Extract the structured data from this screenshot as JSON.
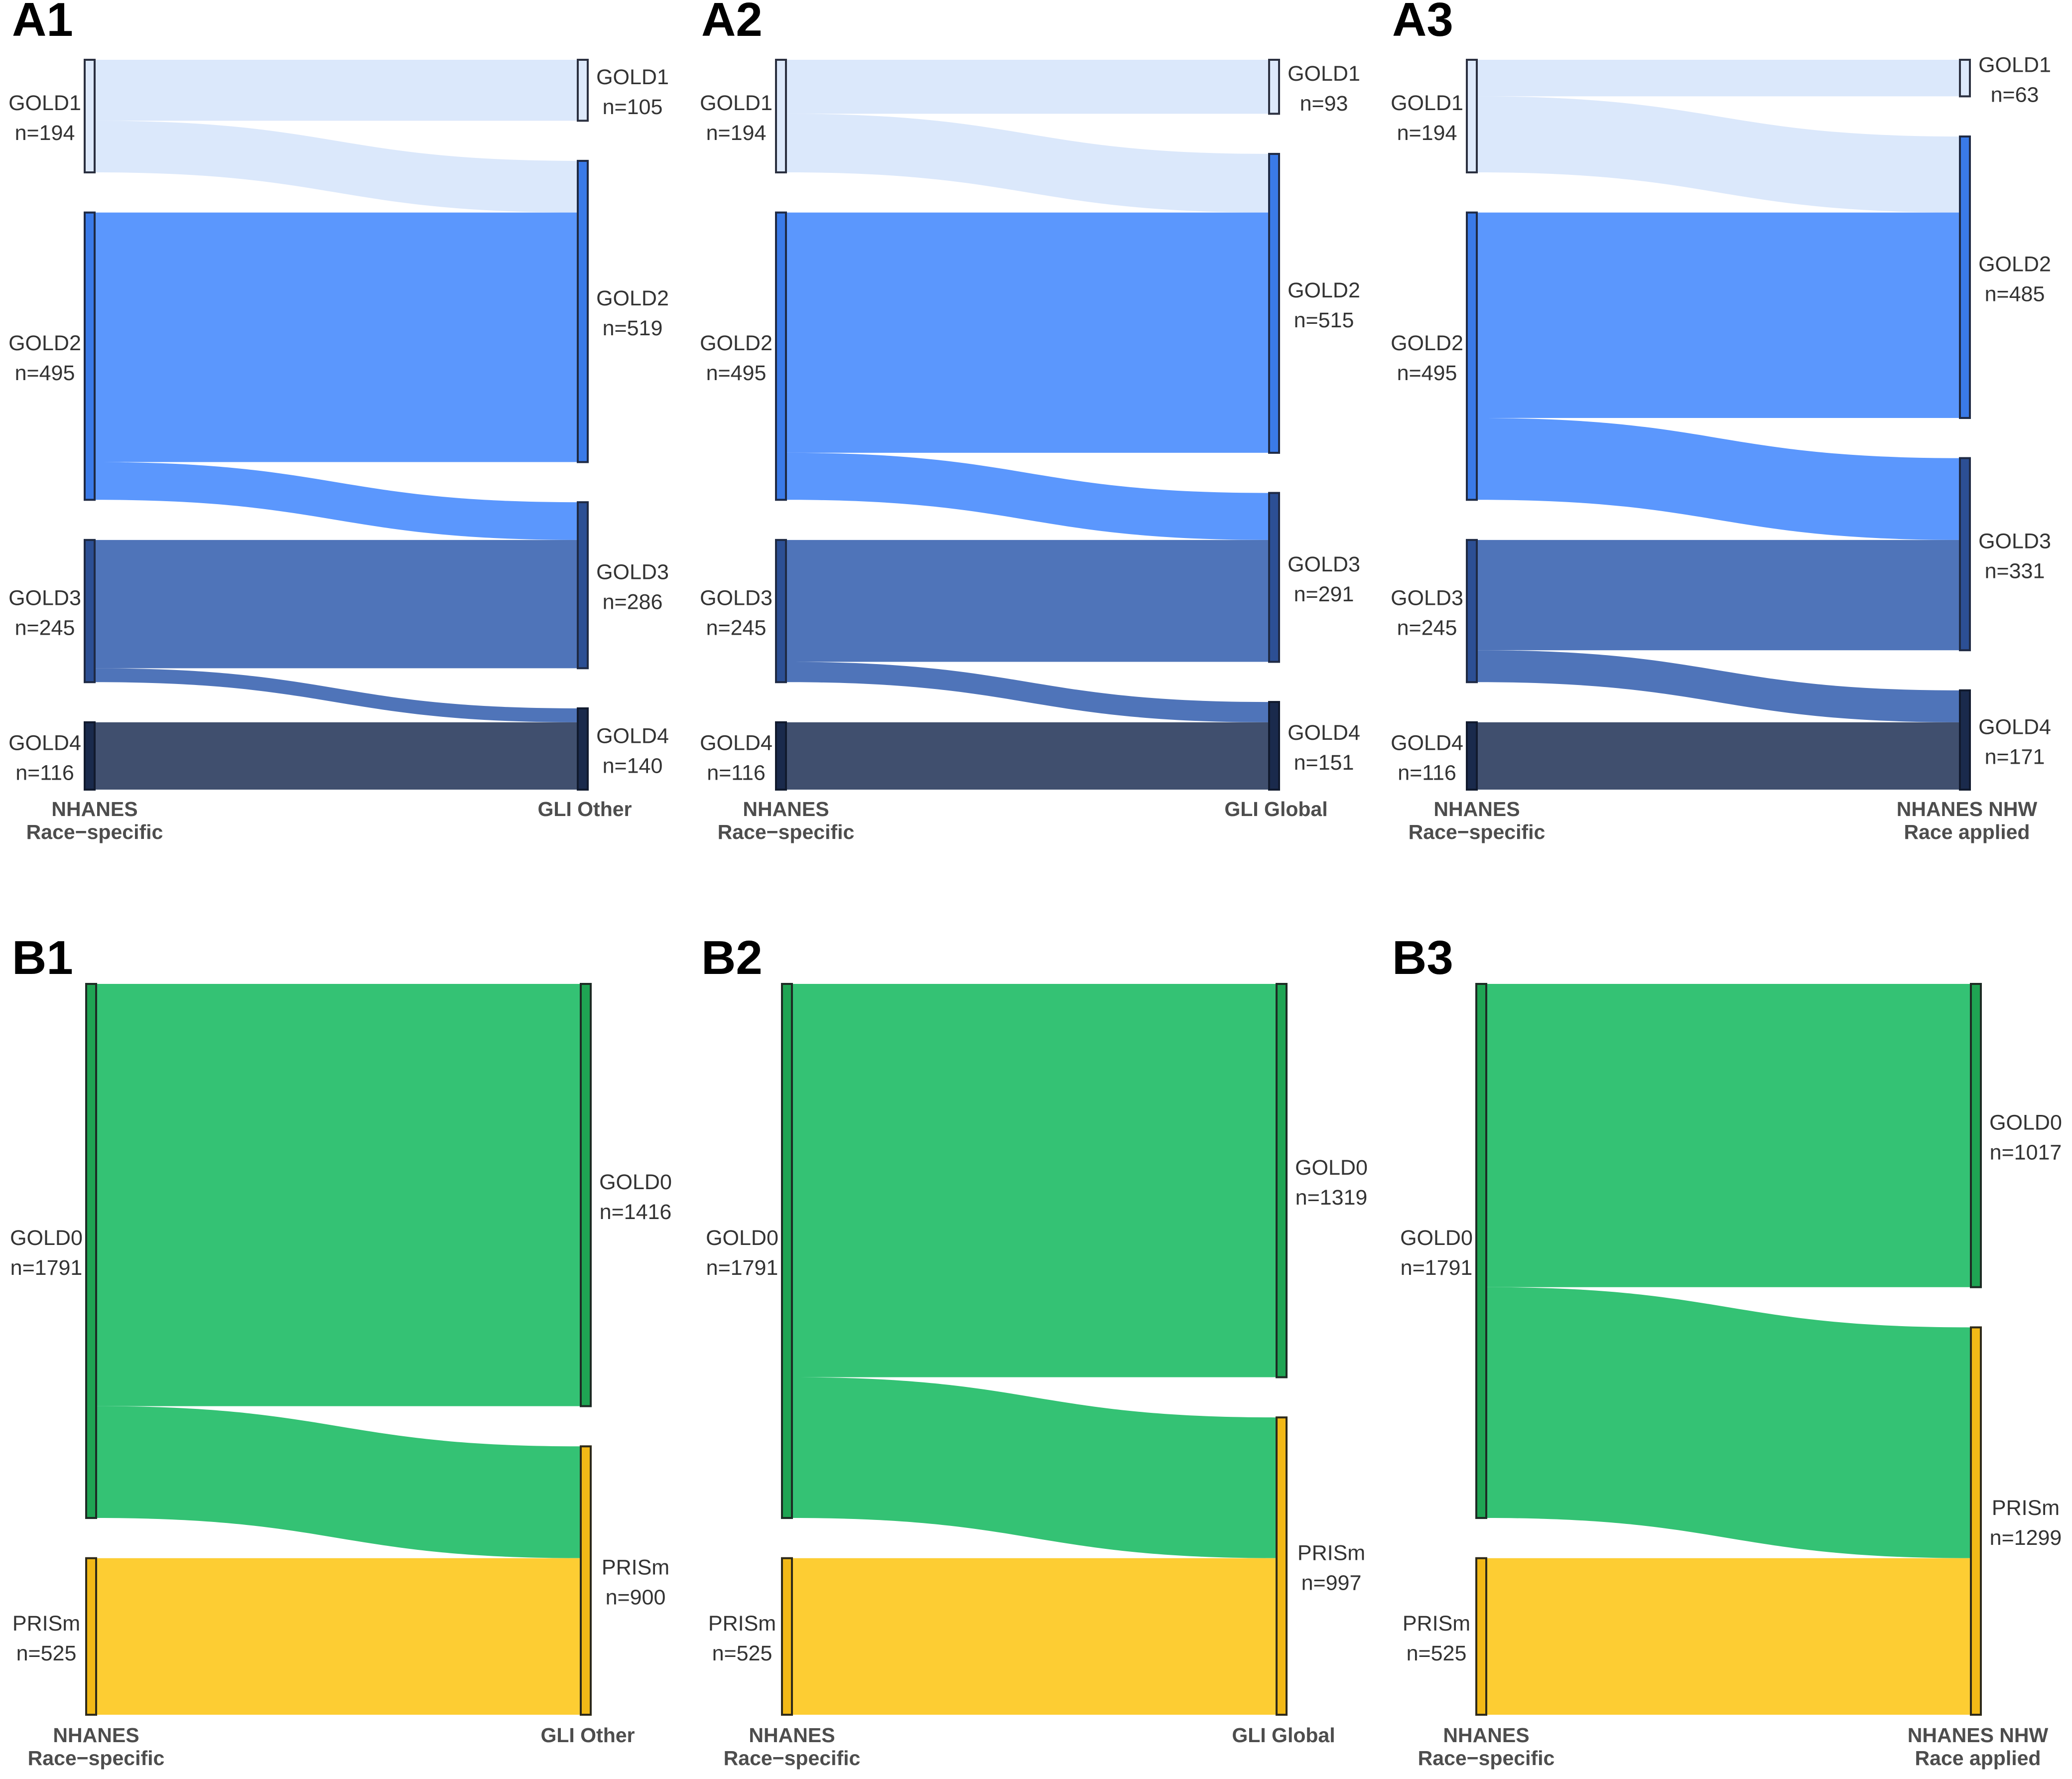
{
  "colors": {
    "GOLD1": "#dbe8fb",
    "GOLD2": "#5b97fd",
    "GOLD3": "#4f74b9",
    "GOLD4": "#404f6e",
    "GOLD0": "#34c274",
    "PRISm": "#fdcd33",
    "stroke": "#333333"
  },
  "panels": [
    {
      "id": "A1",
      "left_axis": [
        "NHANES",
        "Race−specific"
      ],
      "right_axis": [
        "GLI Other"
      ],
      "left_nodes": [
        {
          "name": "GOLD1",
          "n": "n=194",
          "fill": "#dde9fb",
          "stroke": "#2b3040"
        },
        {
          "name": "GOLD2",
          "n": "n=495",
          "fill": "#3a7ae8",
          "stroke": "#1f2a44"
        },
        {
          "name": "GOLD3",
          "n": "n=245",
          "fill": "#2c4f94",
          "stroke": "#1f2a44"
        },
        {
          "name": "GOLD4",
          "n": "n=116",
          "fill": "#1a2a4c",
          "stroke": "#111a2e"
        }
      ],
      "right_nodes": [
        {
          "name": "GOLD1",
          "n": "n=105"
        },
        {
          "name": "GOLD2",
          "n": "n=519"
        },
        {
          "name": "GOLD3",
          "n": "n=286"
        },
        {
          "name": "GOLD4",
          "n": "n=140"
        }
      ],
      "links": [
        {
          "source": 0,
          "target": 0,
          "value": 105,
          "color": "GOLD1"
        },
        {
          "source": 0,
          "target": 1,
          "value": 89,
          "color": "GOLD1"
        },
        {
          "source": 1,
          "target": 1,
          "value": 430,
          "color": "GOLD2"
        },
        {
          "source": 1,
          "target": 2,
          "value": 65,
          "color": "GOLD2"
        },
        {
          "source": 2,
          "target": 2,
          "value": 221,
          "color": "GOLD3"
        },
        {
          "source": 2,
          "target": 3,
          "value": 24,
          "color": "GOLD3"
        },
        {
          "source": 3,
          "target": 3,
          "value": 116,
          "color": "GOLD4"
        }
      ]
    },
    {
      "id": "A2",
      "left_axis": [
        "NHANES",
        "Race−specific"
      ],
      "right_axis": [
        "GLI Global"
      ],
      "left_nodes": [
        {
          "name": "GOLD1",
          "n": "n=194",
          "fill": "#dde9fb",
          "stroke": "#2b3040"
        },
        {
          "name": "GOLD2",
          "n": "n=495",
          "fill": "#3a7ae8",
          "stroke": "#1f2a44"
        },
        {
          "name": "GOLD3",
          "n": "n=245",
          "fill": "#2c4f94",
          "stroke": "#1f2a44"
        },
        {
          "name": "GOLD4",
          "n": "n=116",
          "fill": "#1a2a4c",
          "stroke": "#111a2e"
        }
      ],
      "right_nodes": [
        {
          "name": "GOLD1",
          "n": "n=93"
        },
        {
          "name": "GOLD2",
          "n": "n=515"
        },
        {
          "name": "GOLD3",
          "n": "n=291"
        },
        {
          "name": "GOLD4",
          "n": "n=151"
        }
      ],
      "links": [
        {
          "source": 0,
          "target": 0,
          "value": 93,
          "color": "GOLD1"
        },
        {
          "source": 0,
          "target": 1,
          "value": 101,
          "color": "GOLD1"
        },
        {
          "source": 1,
          "target": 1,
          "value": 414,
          "color": "GOLD2"
        },
        {
          "source": 1,
          "target": 2,
          "value": 81,
          "color": "GOLD2"
        },
        {
          "source": 2,
          "target": 2,
          "value": 210,
          "color": "GOLD3"
        },
        {
          "source": 2,
          "target": 3,
          "value": 35,
          "color": "GOLD3"
        },
        {
          "source": 3,
          "target": 3,
          "value": 116,
          "color": "GOLD4"
        }
      ]
    },
    {
      "id": "A3",
      "left_axis": [
        "NHANES",
        "Race−specific"
      ],
      "right_axis": [
        "NHANES NHW",
        "Race applied"
      ],
      "left_nodes": [
        {
          "name": "GOLD1",
          "n": "n=194",
          "fill": "#dde9fb",
          "stroke": "#2b3040"
        },
        {
          "name": "GOLD2",
          "n": "n=495",
          "fill": "#3a7ae8",
          "stroke": "#1f2a44"
        },
        {
          "name": "GOLD3",
          "n": "n=245",
          "fill": "#2c4f94",
          "stroke": "#1f2a44"
        },
        {
          "name": "GOLD4",
          "n": "n=116",
          "fill": "#1a2a4c",
          "stroke": "#111a2e"
        }
      ],
      "right_nodes": [
        {
          "name": "GOLD1",
          "n": "n=63"
        },
        {
          "name": "GOLD2",
          "n": "n=485"
        },
        {
          "name": "GOLD3",
          "n": "n=331"
        },
        {
          "name": "GOLD4",
          "n": "n=171"
        }
      ],
      "links": [
        {
          "source": 0,
          "target": 0,
          "value": 63,
          "color": "GOLD1"
        },
        {
          "source": 0,
          "target": 1,
          "value": 131,
          "color": "GOLD1"
        },
        {
          "source": 1,
          "target": 1,
          "value": 354,
          "color": "GOLD2"
        },
        {
          "source": 1,
          "target": 2,
          "value": 141,
          "color": "GOLD2"
        },
        {
          "source": 2,
          "target": 2,
          "value": 190,
          "color": "GOLD3"
        },
        {
          "source": 2,
          "target": 3,
          "value": 55,
          "color": "GOLD3"
        },
        {
          "source": 3,
          "target": 3,
          "value": 116,
          "color": "GOLD4"
        }
      ]
    },
    {
      "id": "B1",
      "left_axis": [
        "NHANES",
        "Race−specific"
      ],
      "right_axis": [
        "GLI Other"
      ],
      "left_nodes": [
        {
          "name": "GOLD0",
          "n": "n=1791",
          "fill": "#1fa453",
          "stroke": "#1d2b24"
        },
        {
          "name": "PRISm",
          "n": "n=525",
          "fill": "#f2b917",
          "stroke": "#2e2a1a"
        }
      ],
      "right_nodes": [
        {
          "name": "GOLD0",
          "n": "n=1416"
        },
        {
          "name": "PRISm",
          "n": "n=900"
        }
      ],
      "links": [
        {
          "source": 0,
          "target": 0,
          "value": 1416,
          "color": "GOLD0"
        },
        {
          "source": 0,
          "target": 1,
          "value": 375,
          "color": "GOLD0"
        },
        {
          "source": 1,
          "target": 1,
          "value": 525,
          "color": "PRISm"
        }
      ]
    },
    {
      "id": "B2",
      "left_axis": [
        "NHANES",
        "Race−specific"
      ],
      "right_axis": [
        "GLI Global"
      ],
      "left_nodes": [
        {
          "name": "GOLD0",
          "n": "n=1791",
          "fill": "#1fa453",
          "stroke": "#1d2b24"
        },
        {
          "name": "PRISm",
          "n": "n=525",
          "fill": "#f2b917",
          "stroke": "#2e2a1a"
        }
      ],
      "right_nodes": [
        {
          "name": "GOLD0",
          "n": "n=1319"
        },
        {
          "name": "PRISm",
          "n": "n=997"
        }
      ],
      "links": [
        {
          "source": 0,
          "target": 0,
          "value": 1319,
          "color": "GOLD0"
        },
        {
          "source": 0,
          "target": 1,
          "value": 472,
          "color": "GOLD0"
        },
        {
          "source": 1,
          "target": 1,
          "value": 525,
          "color": "PRISm"
        }
      ]
    },
    {
      "id": "B3",
      "left_axis": [
        "NHANES",
        "Race−specific"
      ],
      "right_axis": [
        "NHANES NHW",
        "Race applied"
      ],
      "left_nodes": [
        {
          "name": "GOLD0",
          "n": "n=1791",
          "fill": "#1fa453",
          "stroke": "#1d2b24"
        },
        {
          "name": "PRISm",
          "n": "n=525",
          "fill": "#f2b917",
          "stroke": "#2e2a1a"
        }
      ],
      "right_nodes": [
        {
          "name": "GOLD0",
          "n": "n=1017"
        },
        {
          "name": "PRISm",
          "n": "n=1299"
        }
      ],
      "links": [
        {
          "source": 0,
          "target": 0,
          "value": 1017,
          "color": "GOLD0"
        },
        {
          "source": 0,
          "target": 1,
          "value": 774,
          "color": "GOLD0"
        },
        {
          "source": 1,
          "target": 1,
          "value": 525,
          "color": "PRISm"
        }
      ]
    }
  ]
}
